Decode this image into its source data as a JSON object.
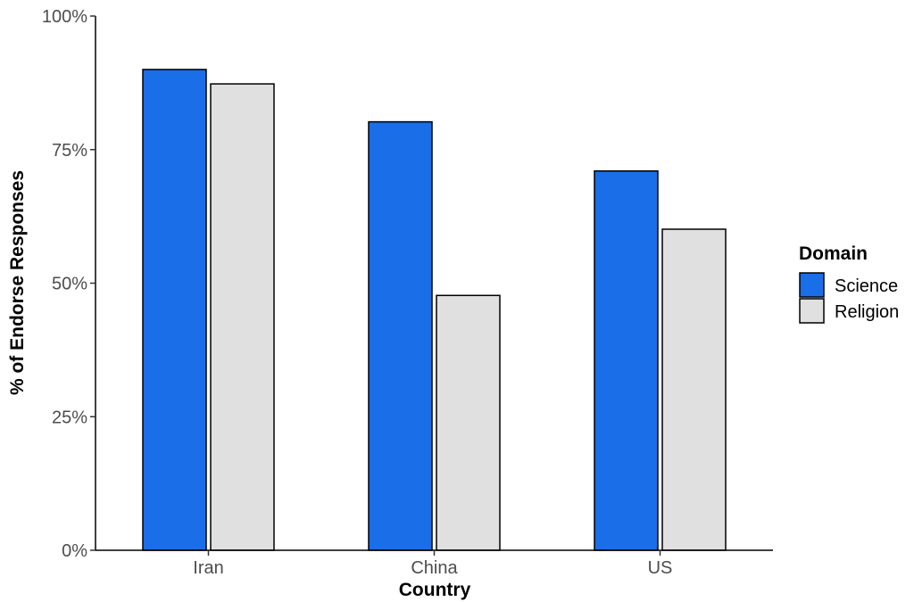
{
  "chart_data": {
    "type": "bar",
    "categories": [
      "Iran",
      "China",
      "US"
    ],
    "series": [
      {
        "name": "Science",
        "values": [
          90,
          80.2,
          71
        ],
        "color": "#1a6ee8"
      },
      {
        "name": "Religion",
        "values": [
          87.3,
          47.7,
          60.1
        ],
        "color": "#e0e0e0"
      }
    ],
    "xlabel": "Country",
    "ylabel": "% of Endorse Responses",
    "ylim": [
      0,
      100
    ],
    "yticks": [
      {
        "value": 0,
        "label": "0%"
      },
      {
        "value": 25,
        "label": "25%"
      },
      {
        "value": 50,
        "label": "50%"
      },
      {
        "value": 75,
        "label": "75%"
      },
      {
        "value": 100,
        "label": "100%"
      }
    ],
    "legend": {
      "title": "Domain",
      "position": "right",
      "entries": [
        "Science",
        "Religion"
      ]
    },
    "grid": false
  }
}
